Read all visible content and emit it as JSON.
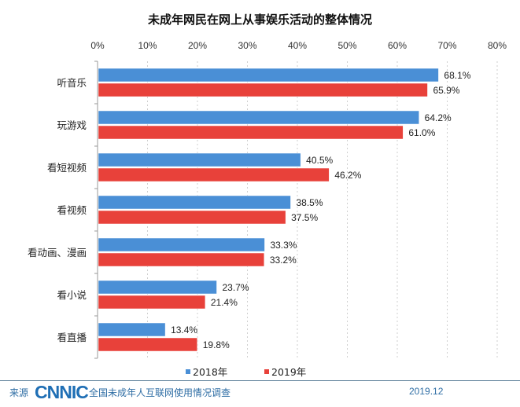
{
  "chart_data": {
    "type": "bar",
    "orientation": "horizontal",
    "title": "未成年网民在网上从事娱乐活动的整体情况",
    "xlabel": "",
    "ylabel": "",
    "xlim": [
      0,
      80
    ],
    "x_ticks": [
      "0%",
      "10%",
      "20%",
      "30%",
      "40%",
      "50%",
      "60%",
      "70%",
      "80%"
    ],
    "x_tick_values": [
      0,
      10,
      20,
      30,
      40,
      50,
      60,
      70,
      80
    ],
    "grid": true,
    "legend_position": "bottom",
    "categories": [
      "听音乐",
      "玩游戏",
      "看短视频",
      "看视频",
      "看动画、漫画",
      "看小说",
      "看直播"
    ],
    "series": [
      {
        "name": "2018年",
        "color": "#4a8fd6",
        "values": [
          68.1,
          64.2,
          40.5,
          38.5,
          33.3,
          23.7,
          13.4
        ],
        "labels": [
          "68.1%",
          "64.2%",
          "40.5%",
          "38.5%",
          "33.3%",
          "23.7%",
          "13.4%"
        ]
      },
      {
        "name": "2019年",
        "color": "#e8413a",
        "values": [
          65.9,
          61.0,
          46.2,
          37.5,
          33.2,
          21.4,
          19.8
        ],
        "labels": [
          "65.9%",
          "61.0%",
          "46.2%",
          "37.5%",
          "33.2%",
          "21.4%",
          "19.8%"
        ]
      }
    ]
  },
  "footer": {
    "source_label": "来源",
    "logo_text": "CNNIC",
    "survey_name": "全国未成年人互联网使用情况调查",
    "date": "2019.12"
  }
}
